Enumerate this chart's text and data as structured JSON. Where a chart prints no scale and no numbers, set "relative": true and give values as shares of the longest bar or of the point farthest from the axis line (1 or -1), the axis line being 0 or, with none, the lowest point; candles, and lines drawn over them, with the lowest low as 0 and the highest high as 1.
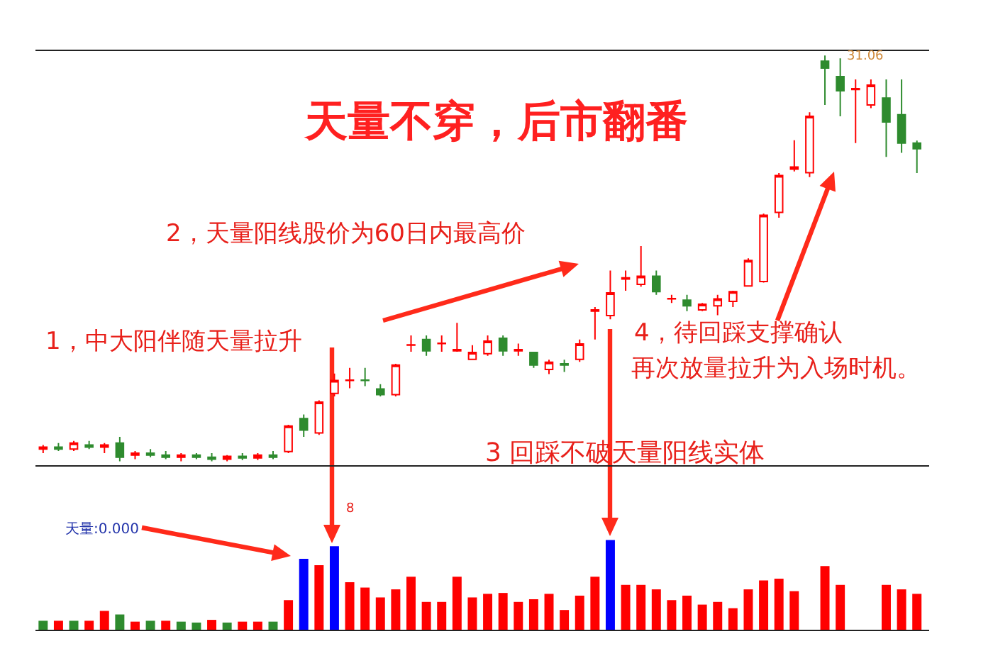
{
  "chart_data": [
    {
      "type": "candlestick",
      "relative": true,
      "title": "天量不穿，后市翻番",
      "categories": [
        null,
        null,
        null,
        null,
        null,
        null,
        null,
        null,
        null,
        null,
        null,
        null,
        null,
        null,
        null,
        null,
        null,
        null,
        null,
        null,
        null,
        null,
        null,
        null,
        null,
        null,
        null,
        null,
        null,
        null,
        null,
        null,
        null,
        null,
        null,
        null,
        null,
        null,
        null,
        null,
        null,
        null,
        null,
        null,
        null,
        null,
        null,
        null,
        null,
        null,
        null,
        null,
        null,
        null,
        null,
        null,
        null,
        null
      ],
      "ohlc": [
        [
          0.03,
          0.04,
          0.02,
          0.035
        ],
        [
          0.035,
          0.045,
          0.025,
          0.03
        ],
        [
          0.03,
          0.05,
          0.025,
          0.045
        ],
        [
          0.04,
          0.05,
          0.03,
          0.035
        ],
        [
          0.035,
          0.045,
          0.02,
          0.04
        ],
        [
          0.045,
          0.06,
          0.0,
          0.01
        ],
        [
          0.015,
          0.025,
          0.005,
          0.02
        ],
        [
          0.02,
          0.03,
          0.01,
          0.015
        ],
        [
          0.015,
          0.025,
          0.005,
          0.01
        ],
        [
          0.01,
          0.02,
          0.0,
          0.015
        ],
        [
          0.015,
          0.02,
          0.005,
          0.01
        ],
        [
          0.01,
          0.02,
          0.0,
          0.005
        ],
        [
          0.005,
          0.015,
          0.0,
          0.012
        ],
        [
          0.012,
          0.02,
          0.003,
          0.008
        ],
        [
          0.008,
          0.02,
          0.003,
          0.015
        ],
        [
          0.015,
          0.025,
          0.005,
          0.01
        ],
        [
          0.024,
          0.09,
          0.02,
          0.087
        ],
        [
          0.105,
          0.115,
          0.06,
          0.077
        ],
        [
          0.07,
          0.15,
          0.065,
          0.146
        ],
        [
          0.167,
          0.216,
          0.16,
          0.199
        ],
        [
          0.199,
          0.23,
          0.18,
          0.2
        ],
        [
          0.2,
          0.23,
          0.185,
          0.199
        ],
        [
          0.178,
          0.19,
          0.16,
          0.164
        ],
        [
          0.164,
          0.24,
          0.16,
          0.237
        ],
        [
          0.286,
          0.31,
          0.27,
          0.287
        ],
        [
          0.3,
          0.31,
          0.26,
          0.272
        ],
        [
          0.29,
          0.31,
          0.27,
          0.291
        ],
        [
          0.272,
          0.341,
          0.27,
          0.275
        ],
        [
          0.251,
          0.286,
          0.25,
          0.268
        ],
        [
          0.265,
          0.31,
          0.26,
          0.296
        ],
        [
          0.303,
          0.31,
          0.26,
          0.272
        ],
        [
          0.272,
          0.29,
          0.26,
          0.275
        ],
        [
          0.268,
          0.27,
          0.23,
          0.237
        ],
        [
          0.226,
          0.25,
          0.215,
          0.244
        ],
        [
          0.237,
          0.25,
          0.22,
          0.24
        ],
        [
          0.251,
          0.3,
          0.245,
          0.289
        ],
        [
          0.37,
          0.38,
          0.3,
          0.373
        ],
        [
          0.359,
          0.47,
          0.35,
          0.415
        ],
        [
          0.449,
          0.47,
          0.42,
          0.452
        ],
        [
          0.436,
          0.53,
          0.43,
          0.456
        ],
        [
          0.456,
          0.47,
          0.41,
          0.418
        ],
        [
          0.4,
          0.41,
          0.39,
          0.401
        ],
        [
          0.397,
          0.41,
          0.37,
          0.383
        ],
        [
          0.373,
          0.39,
          0.37,
          0.387
        ],
        [
          0.383,
          0.41,
          0.36,
          0.4
        ],
        [
          0.394,
          0.42,
          0.38,
          0.418
        ],
        [
          0.432,
          0.5,
          0.43,
          0.495
        ],
        [
          0.443,
          0.61,
          0.44,
          0.606
        ],
        [
          0.613,
          0.71,
          0.6,
          0.704
        ],
        [
          0.72,
          0.791,
          0.714,
          0.725
        ],
        [
          0.711,
          0.86,
          0.7,
          0.85
        ],
        [
          0.986,
          1,
          0.878,
          0.969
        ],
        [
          0.948,
          0.993,
          0.85,
          0.913
        ],
        [
          0.916,
          0.941,
          0.784,
          0.918
        ],
        [
          0.878,
          0.941,
          0.87,
          0.927
        ],
        [
          0.895,
          0.941,
          0.75,
          0.836
        ],
        [
          0.854,
          0.941,
          0.76,
          0.784
        ],
        [
          0.784,
          0.79,
          0.71,
          0.77
        ]
      ],
      "colors": [
        "#ff0000",
        "#2e8b2e",
        "#ff0000",
        "#2e8b2e",
        "#ff0000",
        "#2e8b2e",
        "#ff0000",
        "#2e8b2e",
        "#2e8b2e",
        "#ff0000",
        "#2e8b2e",
        "#2e8b2e",
        "#ff0000",
        "#2e8b2e",
        "#ff0000",
        "#2e8b2e",
        "#ff0000",
        "#2e8b2e",
        "#ff0000",
        "#ff0000",
        "#ff0000",
        "#2e8b2e",
        "#2e8b2e",
        "#ff0000",
        "#ff0000",
        "#2e8b2e",
        "#ff0000",
        "#ff0000",
        "#ff0000",
        "#ff0000",
        "#2e8b2e",
        "#ff0000",
        "#2e8b2e",
        "#ff0000",
        "#2e8b2e",
        "#ff0000",
        "#ff0000",
        "#ff0000",
        "#ff0000",
        "#ff0000",
        "#2e8b2e",
        "#ff0000",
        "#2e8b2e",
        "#ff0000",
        "#ff0000",
        "#ff0000",
        "#ff0000",
        "#ff0000",
        "#ff0000",
        "#ff0000",
        "#ff0000",
        "#2e8b2e",
        "#2e8b2e",
        "#ff0000",
        "#ff0000",
        "#2e8b2e",
        "#2e8b2e",
        "#2e8b2e"
      ],
      "annotations": [
        "2，天量阳线股价为60日内最高价",
        "1，中大阳伴随天量拉升",
        "3 回踩不破天量阳线实体",
        "4，待回踩支撑确认",
        "再次放量拉升为入场时机。",
        "31.06"
      ]
    },
    {
      "type": "bar",
      "relative": true,
      "categories": [
        null,
        null,
        null,
        null,
        null,
        null,
        null,
        null,
        null,
        null,
        null,
        null,
        null,
        null,
        null,
        null,
        null,
        null,
        null,
        null,
        null,
        null,
        null,
        null,
        null,
        null,
        null,
        null,
        null,
        null,
        null,
        null,
        null,
        null,
        null,
        null,
        null,
        null,
        null,
        null,
        null,
        null,
        null,
        null,
        null,
        null,
        null,
        null,
        null,
        null,
        null,
        null,
        null,
        null,
        null,
        null,
        null,
        null
      ],
      "values": [
        0.1,
        0.1,
        0.1,
        0.1,
        0.21,
        0.17,
        0.09,
        0.1,
        0.1,
        0.09,
        0.08,
        0.11,
        0.08,
        0.09,
        0.09,
        0.09,
        0.33,
        0.79,
        0.72,
        0.93,
        0.53,
        0.47,
        0.36,
        0.45,
        0.59,
        0.31,
        0.31,
        0.59,
        0.36,
        0.4,
        0.41,
        0.31,
        0.34,
        0.4,
        0.22,
        0.38,
        0.59,
        1,
        0.5,
        0.5,
        0.45,
        0.33,
        0.38,
        0.28,
        0.31,
        0.24,
        0.45,
        0.55,
        0.57,
        0.43,
        null,
        0.71,
        0.5,
        null,
        null,
        0.5,
        0.45,
        0.4
      ],
      "colors": [
        "#2e8b2e",
        "#ff0000",
        "#2e8b2e",
        "#ff0000",
        "#ff0000",
        "#2e8b2e",
        "#ff0000",
        "#2e8b2e",
        "#ff0000",
        "#2e8b2e",
        "#2e8b2e",
        "#ff0000",
        "#2e8b2e",
        "#ff0000",
        "#ff0000",
        "#2e8b2e",
        "#ff0000",
        "#0000ff",
        "#ff0000",
        "#0000ff",
        "#ff0000",
        "#ff0000",
        "#ff0000",
        "#ff0000",
        "#ff0000",
        "#ff0000",
        "#ff0000",
        "#ff0000",
        "#ff0000",
        "#ff0000",
        "#ff0000",
        "#ff0000",
        "#ff0000",
        "#ff0000",
        "#ff0000",
        "#ff0000",
        "#ff0000",
        "#0000ff",
        "#ff0000",
        "#ff0000",
        "#ff0000",
        "#ff0000",
        "#ff0000",
        "#ff0000",
        "#ff0000",
        "#ff0000",
        "#ff0000",
        "#ff0000",
        "#ff0000",
        "#ff0000",
        "#ff0000",
        "#ff0000",
        "#ff0000",
        "#ff0000",
        "#ff0000",
        "#ff0000",
        "#ff0000",
        "#ff0000"
      ],
      "annotations": [
        "天量:0.000",
        "8"
      ]
    }
  ]
}
